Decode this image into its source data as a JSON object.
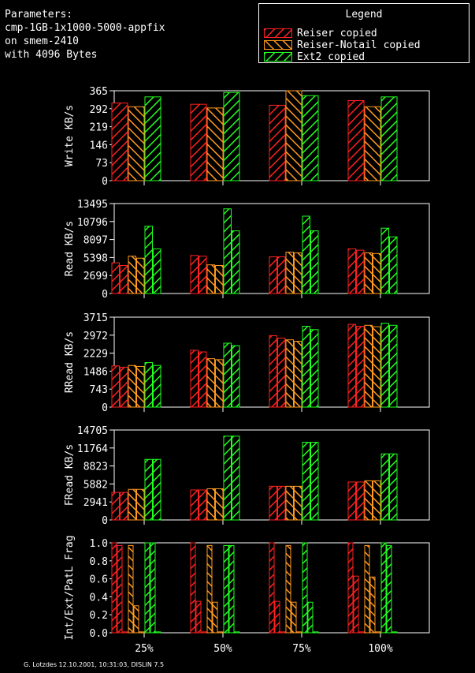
{
  "params": {
    "heading": "Parameters:",
    "line1": "cmp-1GB-1x1000-5000-appfix",
    "line2": "on smem-2410",
    "line3": "with 4096 Bytes"
  },
  "legend": {
    "title": "Legend",
    "items": [
      {
        "label": "Reiser copied",
        "color": "#ff2020"
      },
      {
        "label": "Reiser-Notail copied",
        "color": "#ff9a20"
      },
      {
        "label": "Ext2 copied",
        "color": "#20ff20"
      }
    ]
  },
  "footer": "G. Lotzdes 12.10.2001, 10:31:03, DISLIN 7.5",
  "chart_data": [
    {
      "type": "bar",
      "ylabel": "Write KB/s",
      "categories": [
        "25%",
        "50%",
        "75%",
        "100%"
      ],
      "yticks": [
        0,
        73,
        146,
        219,
        292,
        365
      ],
      "ylim": [
        0,
        365
      ],
      "series": [
        {
          "name": "Reiser copied",
          "values": [
            [
              315
            ]
          ]
        },
        {
          "name": "Reiser-Notail copied",
          "values": [
            [
              300
            ]
          ]
        },
        {
          "name": "Ext2 copied",
          "values": [
            [
              340
            ]
          ]
        }
      ],
      "values_by_category": [
        [
          [
            315
          ],
          [
            300
          ],
          [
            340
          ]
        ],
        [
          [
            310
          ],
          [
            295
          ],
          [
            358
          ]
        ],
        [
          [
            306
          ],
          [
            365
          ],
          [
            345
          ]
        ],
        [
          [
            325
          ],
          [
            300
          ],
          [
            340
          ]
        ]
      ]
    },
    {
      "type": "bar",
      "ylabel": "Read KB/s",
      "categories": [
        "25%",
        "50%",
        "75%",
        "100%"
      ],
      "yticks": [
        0,
        2699,
        5398,
        8097,
        10796,
        13495
      ],
      "ylim": [
        0,
        13495
      ],
      "values_by_category": [
        [
          [
            4600,
            4200
          ],
          [
            5600,
            5300
          ],
          [
            10100,
            6700
          ]
        ],
        [
          [
            5700,
            5600
          ],
          [
            4300,
            4200
          ],
          [
            12700,
            9400
          ]
        ],
        [
          [
            5500,
            5500
          ],
          [
            6200,
            6100
          ],
          [
            11600,
            9400
          ]
        ],
        [
          [
            6700,
            6500
          ],
          [
            6100,
            6000
          ],
          [
            9800,
            8500
          ]
        ]
      ]
    },
    {
      "type": "bar",
      "ylabel": "RRead KB/s",
      "categories": [
        "25%",
        "50%",
        "75%",
        "100%"
      ],
      "yticks": [
        0,
        743,
        1486,
        2229,
        2972,
        3715
      ],
      "ylim": [
        0,
        3715
      ],
      "values_by_category": [
        [
          [
            1700,
            1650
          ],
          [
            1720,
            1680
          ],
          [
            1840,
            1720
          ]
        ],
        [
          [
            2350,
            2280
          ],
          [
            2000,
            1960
          ],
          [
            2640,
            2540
          ]
        ],
        [
          [
            2950,
            2850
          ],
          [
            2780,
            2720
          ],
          [
            3340,
            3200
          ]
        ],
        [
          [
            3420,
            3340
          ],
          [
            3380,
            3320
          ],
          [
            3460,
            3380
          ]
        ]
      ]
    },
    {
      "type": "bar",
      "ylabel": "FRead KB/s",
      "categories": [
        "25%",
        "50%",
        "75%",
        "100%"
      ],
      "yticks": [
        0,
        2941,
        5882,
        8823,
        11764,
        14705
      ],
      "ylim": [
        0,
        14705
      ],
      "values_by_category": [
        [
          [
            4500,
            4500
          ],
          [
            5000,
            5000
          ],
          [
            9900,
            9900
          ]
        ],
        [
          [
            4900,
            4900
          ],
          [
            5100,
            5100
          ],
          [
            13700,
            13700
          ]
        ],
        [
          [
            5500,
            5500
          ],
          [
            5500,
            5500
          ],
          [
            12700,
            12700
          ]
        ],
        [
          [
            6200,
            6200
          ],
          [
            6400,
            6400
          ],
          [
            10800,
            10800
          ]
        ]
      ]
    },
    {
      "type": "bar",
      "ylabel": "Int/Ext/PatL Frag",
      "categories": [
        "25%",
        "50%",
        "75%",
        "100%"
      ],
      "yticks": [
        "0.0",
        "0.2",
        "0.4",
        "0.6",
        "0.8",
        "1.0"
      ],
      "ylim": [
        0,
        1
      ],
      "values_by_category": [
        [
          [
            1.0,
            0.97,
            0.01
          ],
          [
            0.97,
            0.3,
            0.01
          ],
          [
            1.0,
            1.0,
            0.01
          ]
        ],
        [
          [
            1.0,
            0.35,
            0.01
          ],
          [
            0.97,
            0.34,
            0.01
          ],
          [
            0.97,
            0.97,
            0.01
          ]
        ],
        [
          [
            1.0,
            0.35,
            0.01
          ],
          [
            0.97,
            0.34,
            0.01
          ],
          [
            1.0,
            0.34,
            0.01
          ]
        ],
        [
          [
            1.0,
            0.63,
            0.01
          ],
          [
            0.97,
            0.62,
            0.01
          ],
          [
            1.0,
            0.97,
            0.01
          ]
        ]
      ]
    }
  ]
}
